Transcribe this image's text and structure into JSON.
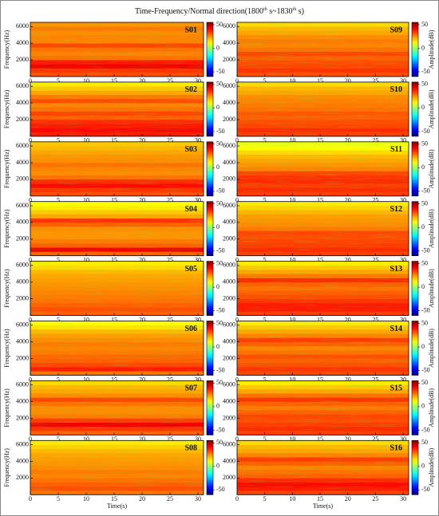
{
  "chart_data": {
    "type": "heatmap",
    "title": [
      "Time-Frequency/Normal direction(1800",
      "th",
      " s~1830",
      "th",
      " s)"
    ],
    "xlabel": "Time(s)",
    "ylabel": "Frequency(Hz)",
    "colorbar_label": "Amplitude(dB)",
    "xlim": [
      0,
      31
    ],
    "xticks": [
      0,
      5,
      10,
      15,
      20,
      25,
      30
    ],
    "ylim": [
      0,
      6500
    ],
    "yticks": [
      2000,
      4000,
      6000
    ],
    "clim": [
      -60,
      55
    ],
    "cticks": [
      50,
      0,
      -50
    ],
    "colormap": "jet",
    "bands_hz": [
      0,
      500,
      1000,
      1500,
      2000,
      2500,
      3000,
      3500,
      4000,
      4500,
      5000,
      5500,
      6000,
      6500
    ],
    "panels": [
      {
        "name": "S01",
        "values": [
          32,
          35,
          42,
          38,
          28,
          26,
          28,
          33,
          26,
          26,
          25,
          27,
          24
        ]
      },
      {
        "name": "S02",
        "values": [
          38,
          40,
          38,
          36,
          30,
          33,
          28,
          26,
          32,
          27,
          22,
          18,
          14
        ]
      },
      {
        "name": "S03",
        "values": [
          32,
          35,
          40,
          36,
          28,
          25,
          26,
          28,
          25,
          24,
          22,
          20,
          18
        ]
      },
      {
        "name": "S04",
        "values": [
          30,
          42,
          30,
          27,
          24,
          24,
          25,
          30,
          35,
          22,
          18,
          14,
          12
        ]
      },
      {
        "name": "S05",
        "values": [
          30,
          32,
          30,
          28,
          27,
          26,
          25,
          24,
          23,
          22,
          20,
          16,
          14
        ]
      },
      {
        "name": "S06",
        "values": [
          28,
          38,
          33,
          30,
          29,
          27,
          26,
          27,
          25,
          23,
          20,
          15,
          12
        ]
      },
      {
        "name": "S07",
        "values": [
          30,
          35,
          42,
          34,
          27,
          25,
          25,
          28,
          33,
          25,
          22,
          20,
          16
        ]
      },
      {
        "name": "S08",
        "values": [
          28,
          32,
          30,
          28,
          26,
          27,
          25,
          24,
          23,
          22,
          20,
          17,
          14
        ]
      },
      {
        "name": "S09",
        "values": [
          32,
          35,
          33,
          32,
          30,
          33,
          28,
          26,
          27,
          25,
          22,
          20,
          16
        ]
      },
      {
        "name": "S10",
        "values": [
          34,
          36,
          33,
          32,
          30,
          31,
          28,
          27,
          26,
          25,
          22,
          20,
          16
        ]
      },
      {
        "name": "S11",
        "values": [
          34,
          36,
          34,
          36,
          35,
          33,
          26,
          24,
          22,
          20,
          16,
          12,
          10
        ]
      },
      {
        "name": "S12",
        "values": [
          34,
          36,
          34,
          33,
          32,
          33,
          27,
          25,
          24,
          23,
          20,
          17,
          14
        ]
      },
      {
        "name": "S13",
        "values": [
          34,
          38,
          38,
          35,
          32,
          30,
          28,
          30,
          36,
          27,
          22,
          18,
          14
        ]
      },
      {
        "name": "S14",
        "values": [
          33,
          35,
          32,
          30,
          32,
          28,
          26,
          30,
          34,
          26,
          22,
          18,
          14
        ]
      },
      {
        "name": "S15",
        "values": [
          34,
          36,
          34,
          32,
          33,
          30,
          27,
          30,
          35,
          28,
          22,
          18,
          14
        ]
      },
      {
        "name": "S16",
        "values": [
          34,
          38,
          40,
          36,
          30,
          28,
          26,
          30,
          34,
          26,
          22,
          20,
          16
        ]
      }
    ]
  }
}
